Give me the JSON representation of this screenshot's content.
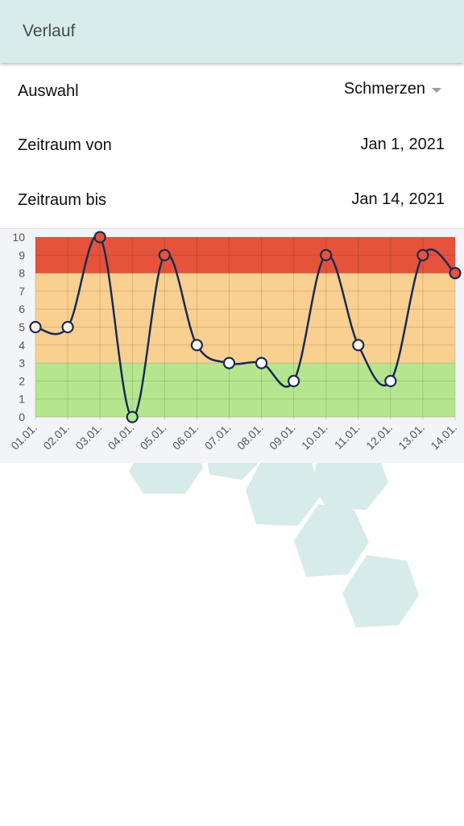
{
  "header": {
    "title": "Verlauf"
  },
  "form": {
    "selection": {
      "label": "Auswahl",
      "value": "Schmerzen"
    },
    "range_from": {
      "label": "Zeitraum von",
      "value": "Jan 1, 2021"
    },
    "range_to": {
      "label": "Zeitraum bis",
      "value": "Jan 14, 2021"
    }
  },
  "colors": {
    "header_bg": "#d8eceb",
    "zone_high": "#e5533b",
    "zone_mid": "#f9d08f",
    "zone_low": "#b5e68f",
    "line": "#1c2a55",
    "hex": "#d7ebea"
  },
  "chart_data": {
    "type": "line",
    "categories": [
      "01.01.",
      "02.01.",
      "03.01.",
      "04.01.",
      "05.01.",
      "06.01.",
      "07.01.",
      "08.01.",
      "09.01.",
      "10.01.",
      "11.01.",
      "12.01.",
      "13.01.",
      "14.01."
    ],
    "series": [
      {
        "values": [
          5,
          5,
          10,
          0,
          9,
          4,
          3,
          3,
          2,
          9,
          4,
          2,
          9,
          8
        ]
      }
    ],
    "y_ticks": [
      "0",
      "1",
      "2",
      "3",
      "4",
      "5",
      "6",
      "7",
      "8",
      "9",
      "10"
    ],
    "ylim": [
      0,
      10
    ],
    "bands": [
      {
        "from": 0,
        "to": 3,
        "color": "#b5e68f"
      },
      {
        "from": 3,
        "to": 8,
        "color": "#f9d08f"
      },
      {
        "from": 8,
        "to": 10,
        "color": "#e5533b"
      }
    ],
    "grid": true,
    "legend": "none",
    "title": "",
    "xlabel": "",
    "ylabel": ""
  }
}
